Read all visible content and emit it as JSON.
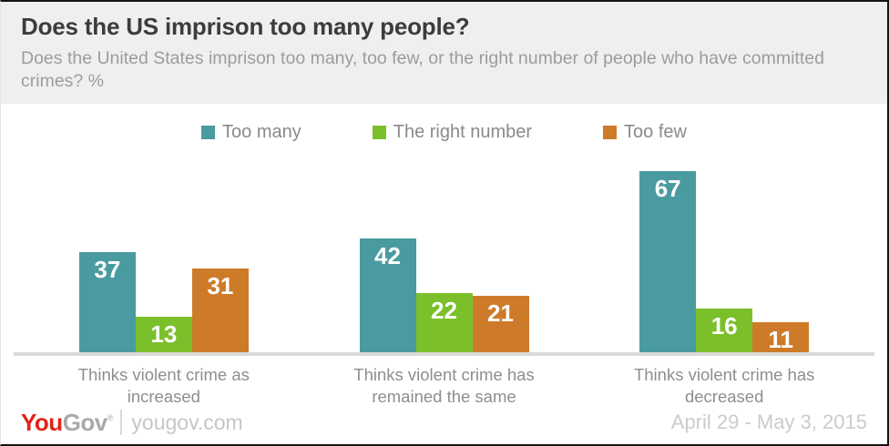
{
  "header": {
    "title": "Does the US imprison too many people?",
    "subtitle": "Does the United States imprison too many, too few, or the right number of people who have committed crimes? %"
  },
  "chart_data": {
    "type": "bar",
    "title": "Does the US imprison too many people?",
    "unit": "%",
    "categories": [
      "Thinks violent crime as increased",
      "Thinks violent crime has remained the same",
      "Thinks violent crime has decreased"
    ],
    "series": [
      {
        "name": "Too many",
        "color": "#4A9BA0",
        "values": [
          37,
          42,
          67
        ]
      },
      {
        "name": "The right number",
        "color": "#7BC02A",
        "values": [
          13,
          22,
          16
        ]
      },
      {
        "name": "Too few",
        "color": "#CE7B29",
        "values": [
          31,
          21,
          11
        ]
      }
    ],
    "ylim": [
      0,
      70
    ],
    "grid": false,
    "legend_position": "top",
    "value_labels": "inside-top-white"
  },
  "footer": {
    "logo": {
      "you": "You",
      "gov": "Gov",
      "reg": "®",
      "red_color": "#E2231A",
      "gray_color": "#A9A9A9"
    },
    "site": "yougov.com",
    "date_range": "April 29 - May 3, 2015"
  },
  "colors": {
    "header_bg": "#EFEFEF",
    "axis_line": "#DADADA",
    "category_label": "#8E8E8E",
    "legend_text": "#8A8A8A",
    "title_text": "#3C3C3C",
    "subtitle_text": "#9C9C9C"
  }
}
